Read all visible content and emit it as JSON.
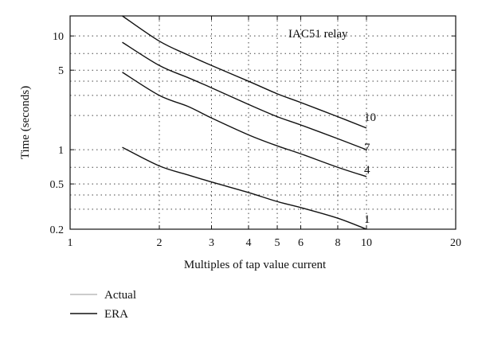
{
  "chart_data": {
    "type": "line",
    "title": "",
    "annotation": "IAC51 relay",
    "xlabel": "Multiples of tap value current",
    "ylabel": "Time (seconds)",
    "xscale": "log",
    "yscale": "log",
    "xlim": [
      1,
      20
    ],
    "ylim": [
      0.2,
      15
    ],
    "xticks": [
      1,
      2,
      3,
      4,
      5,
      6,
      8,
      10,
      20
    ],
    "yticks": [
      0.2,
      0.5,
      1,
      5,
      10
    ],
    "grid": true,
    "legend_position": "below",
    "legend": [
      {
        "name": "Actual",
        "color": "#999999"
      },
      {
        "name": "ERA",
        "color": "#111111"
      }
    ],
    "series": [
      {
        "name": "10",
        "legend_group": "ERA",
        "x": [
          1.5,
          2,
          2.5,
          3,
          4,
          5,
          6,
          8,
          10
        ],
        "y": [
          15.0,
          9.0,
          6.8,
          5.5,
          4.0,
          3.1,
          2.6,
          1.95,
          1.55
        ]
      },
      {
        "name": "7",
        "legend_group": "ERA",
        "x": [
          1.5,
          2,
          2.5,
          3,
          4,
          5,
          6,
          8,
          10
        ],
        "y": [
          8.8,
          5.5,
          4.3,
          3.5,
          2.5,
          1.95,
          1.65,
          1.25,
          1.0
        ]
      },
      {
        "name": "4",
        "legend_group": "ERA",
        "x": [
          1.5,
          2,
          2.5,
          3,
          4,
          5,
          6,
          8,
          10
        ],
        "y": [
          4.8,
          3.0,
          2.4,
          1.9,
          1.35,
          1.08,
          0.92,
          0.7,
          0.58
        ]
      },
      {
        "name": "1",
        "legend_group": "ERA",
        "x": [
          1.5,
          2,
          2.5,
          3,
          4,
          5,
          6,
          8,
          10
        ],
        "y": [
          1.05,
          0.72,
          0.6,
          0.52,
          0.42,
          0.35,
          0.31,
          0.25,
          0.2
        ]
      }
    ]
  }
}
